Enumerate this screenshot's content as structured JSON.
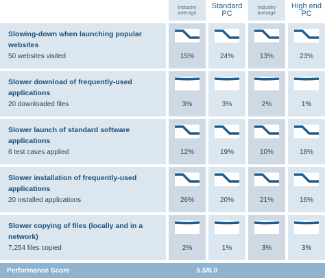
{
  "columns": [
    {
      "label_line1": "Industry",
      "label_line2": "average",
      "size": "small"
    },
    {
      "label_line1": "Standard",
      "label_line2": "PC",
      "size": "big"
    },
    {
      "label_line1": "Industry",
      "label_line2": "average",
      "size": "small"
    },
    {
      "label_line1": "High end",
      "label_line2": "PC",
      "size": "big"
    }
  ],
  "rows": [
    {
      "title": "Slowing-down when launching popular websites",
      "subtitle": "50 websites visited",
      "values": [
        "15%",
        "24%",
        "13%",
        "23%"
      ],
      "icons": [
        "slowdown-step-icon",
        "slowdown-step-icon",
        "slowdown-step-icon",
        "slowdown-step-icon"
      ]
    },
    {
      "title": "Slower download of frequently-used applications",
      "subtitle": "20 downloaded files",
      "values": [
        "3%",
        "3%",
        "2%",
        "1%"
      ],
      "icons": [
        "slowdown-flat-icon",
        "slowdown-flat-icon",
        "slowdown-flat-icon",
        "slowdown-flat-icon"
      ]
    },
    {
      "title": "Slower launch of standard software applications",
      "subtitle": "6 test cases applied",
      "values": [
        "12%",
        "19%",
        "10%",
        "18%"
      ],
      "icons": [
        "slowdown-step-icon",
        "slowdown-step-icon",
        "slowdown-step-icon",
        "slowdown-step-icon"
      ]
    },
    {
      "title": "Slower installation of frequently-used applications",
      "subtitle": "20 installed applications",
      "values": [
        "26%",
        "20%",
        "21%",
        "16%"
      ],
      "icons": [
        "slowdown-step-icon",
        "slowdown-step-icon",
        "slowdown-step-icon",
        "slowdown-step-icon"
      ]
    },
    {
      "title": "Slower copying of files (locally and in a network)",
      "subtitle": "7,254 files copied",
      "values": [
        "2%",
        "1%",
        "3%",
        "3%"
      ],
      "icons": [
        "slowdown-flat-icon",
        "slowdown-flat-icon",
        "slowdown-flat-icon",
        "slowdown-flat-icon"
      ]
    }
  ],
  "footer": {
    "label": "Performance Score",
    "score": "5.5/6.0"
  },
  "colors": {
    "line": "#1e5d8c",
    "light_cell": "#dbe6ef",
    "dark_cell": "#cfd9e3",
    "footer": "#8fb2cf"
  }
}
